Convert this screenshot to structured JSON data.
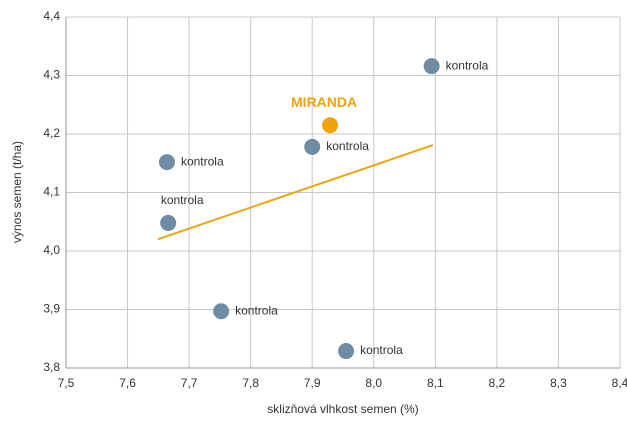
{
  "chart_data": {
    "type": "scatter",
    "x_label": "sklizňová vlhkost semen (%)",
    "y_label": "výnos semen (t/ha)",
    "series": [
      {
        "name": "kontrola",
        "color": "#6e8ca3",
        "x": [
          8.094,
          7.9,
          7.664,
          7.666,
          7.752,
          7.955
        ],
        "values": [
          4.316,
          4.178,
          4.152,
          4.048,
          3.897,
          3.829
        ]
      },
      {
        "name": "MIRANDA",
        "color": "#f0a30a",
        "x": [
          7.929
        ],
        "values": [
          4.215
        ]
      }
    ],
    "trendline": {
      "color": "#e8a60f",
      "x": [
        7.649,
        8.096
      ],
      "values": [
        4.02,
        4.181
      ]
    },
    "xlim": [
      7.5,
      8.4
    ],
    "xticks": [
      {
        "value": 7.5,
        "label": "7,5"
      },
      {
        "value": 7.6,
        "label": "7,6"
      },
      {
        "value": 7.7,
        "label": "7,7"
      },
      {
        "value": 7.8,
        "label": "7,8"
      },
      {
        "value": 7.9,
        "label": "7,9"
      },
      {
        "value": 8.0,
        "label": "8,0"
      },
      {
        "value": 8.1,
        "label": "8,1"
      },
      {
        "value": 8.2,
        "label": "8,2"
      },
      {
        "value": 8.3,
        "label": "8,3"
      },
      {
        "value": 8.4,
        "label": "8,4"
      }
    ],
    "ylim": [
      3.8,
      4.4
    ],
    "yticks": [
      {
        "value": 3.8,
        "label": "3,8"
      },
      {
        "value": 3.9,
        "label": "3,9"
      },
      {
        "value": 4.0,
        "label": "4,0"
      },
      {
        "value": 4.1,
        "label": "4,1"
      },
      {
        "value": 4.2,
        "label": "4,2"
      },
      {
        "value": 4.3,
        "label": "4,3"
      },
      {
        "value": 4.4,
        "label": "4,4"
      }
    ],
    "grid": true
  }
}
